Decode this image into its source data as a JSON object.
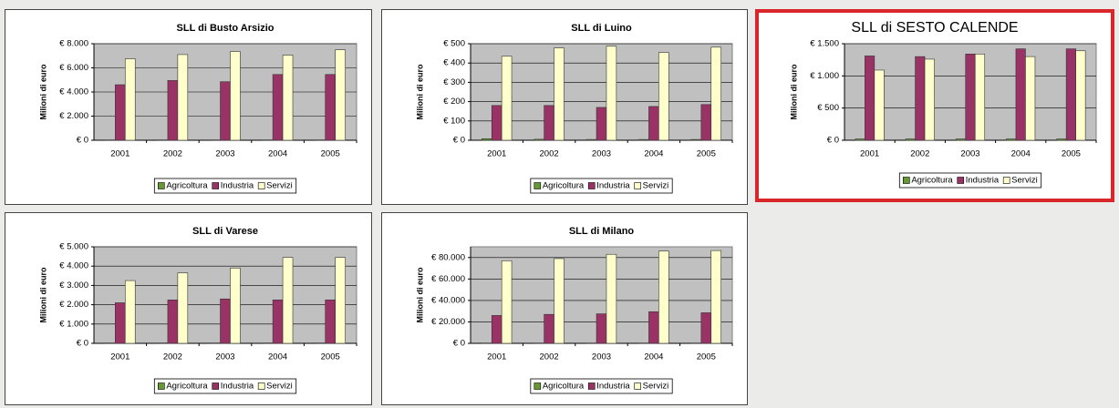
{
  "chart_data": [
    {
      "type": "bar",
      "title": "SLL di Busto Arsizio",
      "ylabel": "Milioni di euro",
      "categories": [
        "2001",
        "2002",
        "2003",
        "2004",
        "2005"
      ],
      "series": [
        {
          "name": "Agricoltura",
          "color": "#669933",
          "values": [
            30,
            30,
            30,
            30,
            30
          ]
        },
        {
          "name": "Industria",
          "color": "#993366",
          "values": [
            4600,
            4950,
            4850,
            5450,
            5450
          ]
        },
        {
          "name": "Servizi",
          "color": "#ffffcc",
          "values": [
            6750,
            7100,
            7350,
            7050,
            7500
          ]
        }
      ],
      "ylim": [
        0,
        8000
      ],
      "yticks": [
        {
          "value": 0,
          "label": "€ 0"
        },
        {
          "value": 2000,
          "label": "€ 2.000"
        },
        {
          "value": 4000,
          "label": "€ 4.000"
        },
        {
          "value": 6000,
          "label": "€ 6.000"
        },
        {
          "value": 8000,
          "label": "€ 8.000"
        }
      ],
      "grid": true
    },
    {
      "type": "bar",
      "title": "SLL di Luino",
      "ylabel": "Milioni di euro",
      "categories": [
        "2001",
        "2002",
        "2003",
        "2004",
        "2005"
      ],
      "series": [
        {
          "name": "Agricoltura",
          "color": "#669933",
          "values": [
            8,
            5,
            4,
            4,
            4
          ]
        },
        {
          "name": "Industria",
          "color": "#993366",
          "values": [
            180,
            180,
            170,
            175,
            185
          ]
        },
        {
          "name": "Servizi",
          "color": "#ffffcc",
          "values": [
            435,
            478,
            487,
            455,
            482
          ]
        }
      ],
      "ylim": [
        0,
        500
      ],
      "yticks": [
        {
          "value": 0,
          "label": "€ 0"
        },
        {
          "value": 100,
          "label": "€ 100"
        },
        {
          "value": 200,
          "label": "€ 200"
        },
        {
          "value": 300,
          "label": "€ 300"
        },
        {
          "value": 400,
          "label": "€ 400"
        },
        {
          "value": 500,
          "label": "€ 500"
        }
      ],
      "grid": true
    },
    {
      "type": "bar",
      "title": "SLL di SESTO CALENDE",
      "ylabel": "Milioni di euro",
      "title_color": "#e3262b",
      "border_color": "#d9262b",
      "categories": [
        "2001",
        "2002",
        "2003",
        "2004",
        "2005"
      ],
      "series": [
        {
          "name": "Agricoltura",
          "color": "#669933",
          "values": [
            20,
            20,
            20,
            20,
            20
          ]
        },
        {
          "name": "Industria",
          "color": "#993366",
          "values": [
            1310,
            1300,
            1340,
            1420,
            1420
          ]
        },
        {
          "name": "Servizi",
          "color": "#ffffcc",
          "values": [
            1090,
            1260,
            1340,
            1300,
            1390
          ]
        }
      ],
      "ylim": [
        0,
        1500
      ],
      "yticks": [
        {
          "value": 0,
          "label": "€ 0"
        },
        {
          "value": 500,
          "label": "€ 500"
        },
        {
          "value": 1000,
          "label": "€ 1.000"
        },
        {
          "value": 1500,
          "label": "€ 1.500"
        }
      ],
      "grid": true
    },
    {
      "type": "bar",
      "title": "SLL di Varese",
      "ylabel": "Milioni di euro",
      "categories": [
        "2001",
        "2002",
        "2003",
        "2004",
        "2005"
      ],
      "series": [
        {
          "name": "Agricoltura",
          "color": "#669933",
          "values": [
            20,
            20,
            20,
            20,
            20
          ]
        },
        {
          "name": "Industria",
          "color": "#993366",
          "values": [
            2100,
            2250,
            2300,
            2250,
            2250
          ]
        },
        {
          "name": "Servizi",
          "color": "#ffffcc",
          "values": [
            3250,
            3650,
            3900,
            4450,
            4450
          ]
        }
      ],
      "ylim": [
        0,
        5000
      ],
      "yticks": [
        {
          "value": 0,
          "label": "€ 0"
        },
        {
          "value": 1000,
          "label": "€ 1.000"
        },
        {
          "value": 2000,
          "label": "€ 2.000"
        },
        {
          "value": 3000,
          "label": "€ 3.000"
        },
        {
          "value": 4000,
          "label": "€ 4.000"
        },
        {
          "value": 5000,
          "label": "€ 5.000"
        }
      ],
      "grid": true
    },
    {
      "type": "bar",
      "title": "SLL di Milano",
      "ylabel": "Milioni di euro",
      "categories": [
        "2001",
        "2002",
        "2003",
        "2004",
        "2005"
      ],
      "series": [
        {
          "name": "Agricoltura",
          "color": "#669933",
          "values": [
            300,
            300,
            300,
            300,
            300
          ]
        },
        {
          "name": "Industria",
          "color": "#993366",
          "values": [
            26000,
            27000,
            27500,
            29500,
            28500
          ]
        },
        {
          "name": "Servizi",
          "color": "#ffffcc",
          "values": [
            77000,
            79000,
            83000,
            86000,
            86500
          ]
        }
      ],
      "ylim": [
        0,
        90000
      ],
      "yticks": [
        {
          "value": 0,
          "label": "€ 0"
        },
        {
          "value": 20000,
          "label": "€ 20.000"
        },
        {
          "value": 40000,
          "label": "€ 40.000"
        },
        {
          "value": 60000,
          "label": "€ 60.000"
        },
        {
          "value": 80000,
          "label": "€ 80.000"
        }
      ],
      "grid": true
    }
  ]
}
